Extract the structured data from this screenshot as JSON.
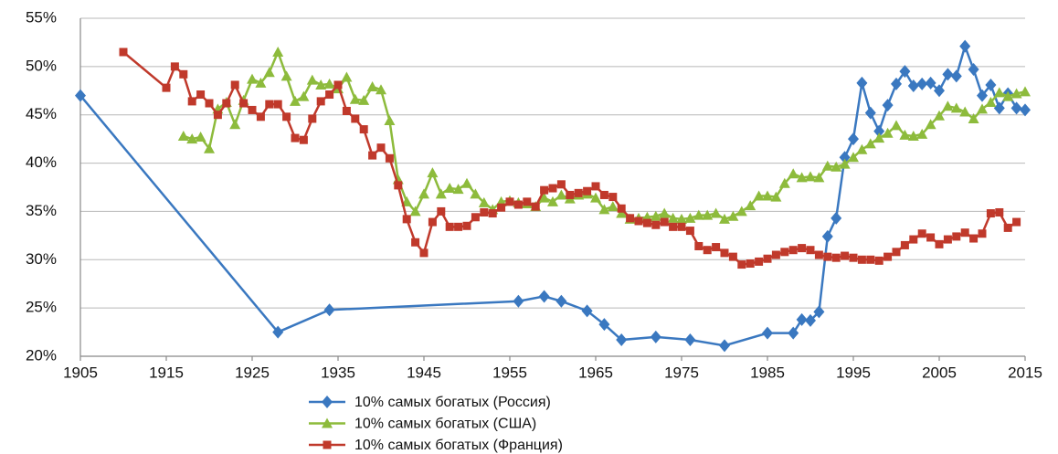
{
  "chart_data": {
    "type": "line",
    "xlim": [
      1905,
      2015
    ],
    "xticks": [
      1905,
      1915,
      1925,
      1935,
      1945,
      1955,
      1965,
      1975,
      1985,
      1995,
      2005,
      2015
    ],
    "ylim": [
      20,
      55
    ],
    "yticks": [
      {
        "value": 20,
        "label": "20%"
      },
      {
        "value": 25,
        "label": "25%"
      },
      {
        "value": 30,
        "label": "30%"
      },
      {
        "value": 35,
        "label": "35%"
      },
      {
        "value": 40,
        "label": "40%"
      },
      {
        "value": 45,
        "label": "45%"
      },
      {
        "value": 50,
        "label": "50%"
      },
      {
        "value": 55,
        "label": "55%"
      }
    ],
    "grid": true,
    "legend": "bottom",
    "series": [
      {
        "name": "10% самых богатых (Россия)",
        "color": "#3a78c0",
        "marker": "diamond",
        "x": [
          1905,
          1928,
          1934,
          1956,
          1959,
          1961,
          1964,
          1966,
          1968,
          1972,
          1976,
          1980,
          1985,
          1988,
          1989,
          1990,
          1991,
          1992,
          1993,
          1994,
          1995,
          1996,
          1997,
          1998,
          1999,
          2000,
          2001,
          2002,
          2003,
          2004,
          2005,
          2006,
          2007,
          2008,
          2009,
          2010,
          2011,
          2012,
          2013,
          2014,
          2015
        ],
        "values": [
          47,
          22.5,
          24.8,
          25.7,
          26.2,
          25.7,
          24.7,
          23.3,
          21.7,
          22,
          21.7,
          21.1,
          22.4,
          22.4,
          23.8,
          23.7,
          24.6,
          32.4,
          34.3,
          40.6,
          42.5,
          48.3,
          45.2,
          43.3,
          46,
          48.2,
          49.5,
          48,
          48.2,
          48.3,
          47.5,
          49.2,
          49,
          52.1,
          49.7,
          47,
          48.1,
          45.7,
          47.2,
          45.7,
          45.5
        ]
      },
      {
        "name": "10% самых богатых (США)",
        "color": "#8dbb3c",
        "marker": "triangle",
        "x": [
          1917,
          1918,
          1919,
          1920,
          1921,
          1922,
          1923,
          1924,
          1925,
          1926,
          1927,
          1928,
          1929,
          1930,
          1931,
          1932,
          1933,
          1934,
          1935,
          1936,
          1937,
          1938,
          1939,
          1940,
          1941,
          1942,
          1943,
          1944,
          1945,
          1946,
          1947,
          1948,
          1949,
          1950,
          1951,
          1952,
          1953,
          1954,
          1955,
          1956,
          1957,
          1958,
          1959,
          1960,
          1961,
          1962,
          1963,
          1964,
          1965,
          1966,
          1967,
          1968,
          1969,
          1970,
          1971,
          1972,
          1973,
          1974,
          1975,
          1976,
          1977,
          1978,
          1979,
          1980,
          1981,
          1982,
          1983,
          1984,
          1985,
          1986,
          1987,
          1988,
          1989,
          1990,
          1991,
          1992,
          1993,
          1994,
          1995,
          1996,
          1997,
          1998,
          1999,
          2000,
          2001,
          2002,
          2003,
          2004,
          2005,
          2006,
          2007,
          2008,
          2009,
          2010,
          2011,
          2012,
          2013,
          2014,
          2015
        ],
        "values": [
          42.8,
          42.5,
          42.7,
          41.5,
          45.6,
          46.3,
          44,
          46.5,
          48.7,
          48.3,
          49.4,
          51.5,
          49,
          46.4,
          46.9,
          48.6,
          48.1,
          48.2,
          47.7,
          48.9,
          46.6,
          46.5,
          47.9,
          47.6,
          44.4,
          38.3,
          36,
          35,
          36.8,
          39,
          36.8,
          37.4,
          37.3,
          37.9,
          36.8,
          35.9,
          35.2,
          36,
          36.1,
          35.9,
          35.8,
          35.5,
          36.4,
          36,
          36.7,
          36.3,
          36.7,
          36.8,
          36.4,
          35.2,
          35.5,
          34.8,
          34.2,
          34.3,
          34.4,
          34.5,
          34.8,
          34.3,
          34.2,
          34.3,
          34.6,
          34.6,
          34.8,
          34.2,
          34.5,
          35,
          35.6,
          36.6,
          36.6,
          36.5,
          37.9,
          38.9,
          38.5,
          38.6,
          38.5,
          39.7,
          39.6,
          39.9,
          40.6,
          41.4,
          42,
          42.6,
          43.1,
          43.9,
          42.9,
          42.8,
          43,
          44,
          44.9,
          45.9,
          45.7,
          45.3,
          44.6,
          45.6,
          46.3,
          47.3,
          46.9,
          47.2,
          47.4
        ]
      },
      {
        "name": "10% самых богатых (Франция)",
        "color": "#c0392b",
        "marker": "square",
        "x": [
          1910,
          1915,
          1916,
          1917,
          1918,
          1919,
          1920,
          1921,
          1922,
          1923,
          1924,
          1925,
          1926,
          1927,
          1928,
          1929,
          1930,
          1931,
          1932,
          1933,
          1934,
          1935,
          1936,
          1937,
          1938,
          1939,
          1940,
          1941,
          1942,
          1943,
          1944,
          1945,
          1946,
          1947,
          1948,
          1949,
          1950,
          1951,
          1952,
          1953,
          1954,
          1955,
          1956,
          1957,
          1958,
          1959,
          1960,
          1961,
          1962,
          1963,
          1964,
          1965,
          1966,
          1967,
          1968,
          1969,
          1970,
          1971,
          1972,
          1973,
          1974,
          1975,
          1976,
          1977,
          1978,
          1979,
          1980,
          1981,
          1982,
          1983,
          1984,
          1985,
          1986,
          1987,
          1988,
          1989,
          1990,
          1991,
          1992,
          1993,
          1994,
          1995,
          1996,
          1997,
          1998,
          1999,
          2000,
          2001,
          2002,
          2003,
          2004,
          2005,
          2006,
          2007,
          2008,
          2009,
          2010,
          2011,
          2012,
          2013,
          2014
        ],
        "values": [
          51.5,
          47.8,
          50,
          49.2,
          46.4,
          47.1,
          46.2,
          45,
          46.2,
          48.1,
          46.2,
          45.5,
          44.8,
          46.1,
          46.1,
          44.8,
          42.6,
          42.4,
          44.6,
          46.4,
          47.1,
          48.1,
          45.4,
          44.6,
          43.5,
          40.8,
          41.6,
          40.5,
          37.7,
          34.2,
          31.8,
          30.7,
          33.9,
          35,
          33.4,
          33.4,
          33.5,
          34.4,
          34.9,
          34.8,
          35.4,
          36,
          35.7,
          36,
          35.5,
          37.2,
          37.4,
          37.8,
          36.7,
          36.9,
          37.1,
          37.6,
          36.7,
          36.5,
          35.3,
          34.3,
          34,
          33.8,
          33.6,
          33.9,
          33.4,
          33.4,
          33,
          31.4,
          31,
          31.3,
          30.7,
          30.3,
          29.5,
          29.6,
          29.8,
          30.1,
          30.5,
          30.8,
          31,
          31.2,
          31,
          30.5,
          30.3,
          30.2,
          30.4,
          30.2,
          30,
          30,
          29.9,
          30.3,
          30.8,
          31.5,
          32.1,
          32.7,
          32.3,
          31.6,
          32.1,
          32.4,
          32.8,
          32.2,
          32.7,
          34.8,
          34.9,
          33.3,
          33.9
        ]
      }
    ]
  }
}
